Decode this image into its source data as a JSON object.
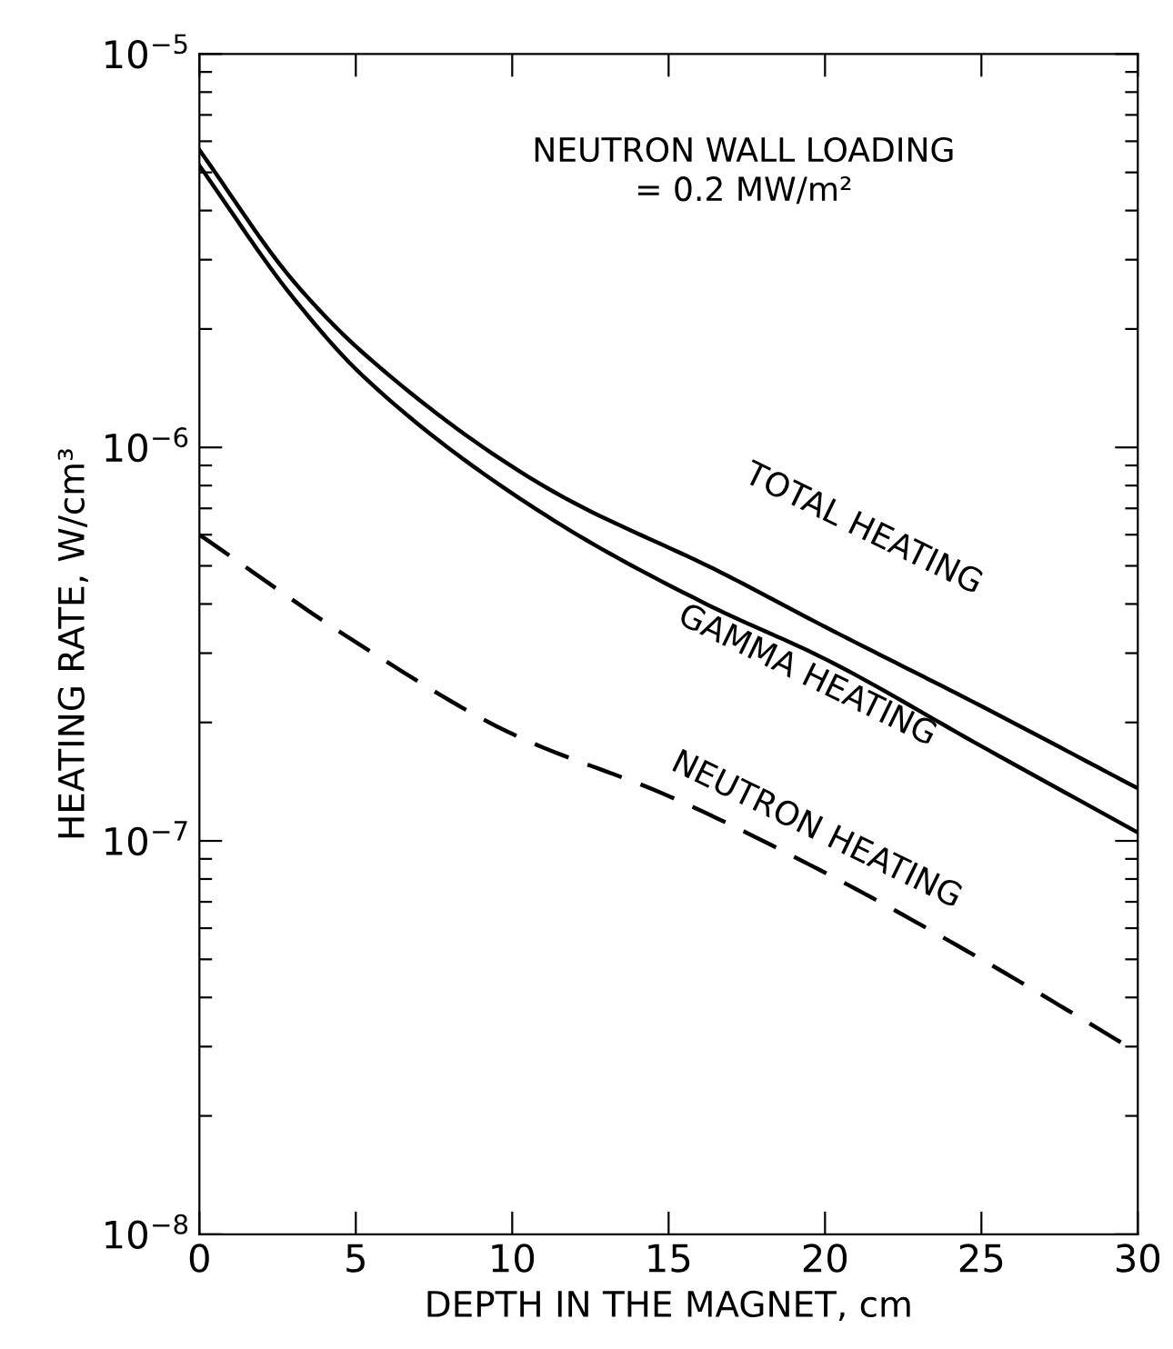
{
  "chart_data": {
    "type": "line",
    "xlabel": "DEPTH IN THE MAGNET, cm",
    "ylabel": "HEATING RATE, W/cm³",
    "log": "y",
    "xlim": [
      0,
      30
    ],
    "ylim": [
      1e-08,
      1e-05
    ],
    "xticks": [
      0,
      5,
      10,
      15,
      20,
      25,
      30
    ],
    "yticks": [
      {
        "value": 1e-08,
        "label": "10$^{−8}$"
      },
      {
        "value": 1e-07,
        "label": "10$^{−7}$"
      },
      {
        "value": 1e-06,
        "label": "10$^{−6}$"
      },
      {
        "value": 1e-05,
        "label": "10$^{−5}$"
      }
    ],
    "grid": false,
    "legend": false,
    "series": [
      {
        "color": "#000000",
        "line_style": "solid",
        "x": [
          0,
          3,
          5.3,
          11.1,
          16.7,
          20,
          25,
          30
        ],
        "values": [
          5.7e-06,
          2.65e-06,
          1.72e-06,
          7.9e-07,
          4.8e-07,
          3.5e-07,
          2.2e-07,
          1.36e-07
        ]
      },
      {
        "color": "#000000",
        "line_style": "solid",
        "x": [
          0,
          3,
          5.3,
          11.1,
          16.2,
          20,
          25,
          30
        ],
        "values": [
          5.2e-06,
          2.4e-06,
          1.5e-06,
          6.7e-07,
          4e-07,
          2.9e-07,
          1.74e-07,
          1.05e-07
        ]
      },
      {
        "color": "#000000",
        "line_style": "dashed",
        "x": [
          0,
          5,
          10,
          15,
          20,
          25,
          30
        ],
        "values": [
          6e-07,
          3.2e-07,
          1.87e-07,
          1.3e-07,
          8.3e-08,
          5e-08,
          2.9e-08
        ]
      }
    ],
    "annotations": [
      {
        "text": "NEUTRON WALL LOADING\n= 0.2 MW/m²"
      },
      "TOTAL HEATING",
      "GAMMA HEATING",
      "NEUTRON HEATING"
    ]
  }
}
